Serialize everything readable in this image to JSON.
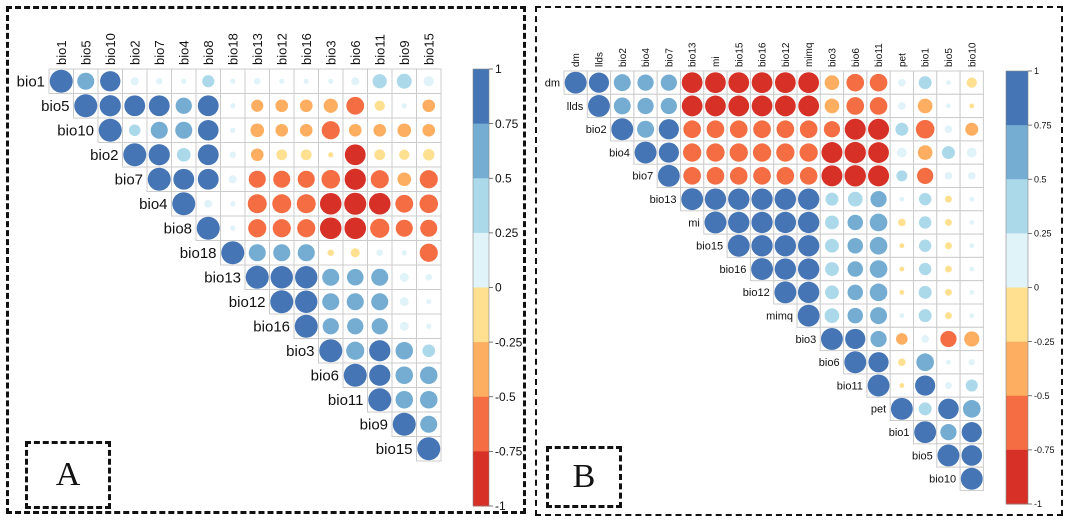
{
  "chart_data": [
    {
      "type": "heatmap",
      "panel_label": "A",
      "variables": [
        "bio1",
        "bio5",
        "bio10",
        "bio2",
        "bio7",
        "bio4",
        "bio8",
        "bio18",
        "bio13",
        "bio12",
        "bio16",
        "bio3",
        "bio6",
        "bio11",
        "bio9",
        "bio15"
      ],
      "matrix_shape": "upper-triangle",
      "glyph": "circle",
      "legend": {
        "ticks": [
          "1",
          "0.75",
          "0.5",
          "0.25",
          "0",
          "-0.25",
          "-0.5",
          "-0.75",
          "-1"
        ],
        "range": [
          -1,
          1
        ],
        "placement": "right"
      },
      "values": [
        [
          1,
          0.55,
          0.78,
          0.12,
          0.08,
          0.05,
          0.28,
          0.05,
          0.08,
          0.05,
          0.05,
          0.05,
          0.12,
          0.38,
          0.42,
          0.2
        ],
        [
          null,
          1,
          0.85,
          0.82,
          0.82,
          0.5,
          0.82,
          0.05,
          -0.28,
          -0.3,
          -0.3,
          -0.38,
          -0.6,
          -0.2,
          0.05,
          -0.3
        ],
        [
          null,
          null,
          1,
          0.25,
          0.55,
          0.55,
          0.8,
          0.05,
          -0.35,
          -0.3,
          -0.3,
          -0.62,
          -0.3,
          -0.3,
          -0.35,
          -0.3
        ],
        [
          null,
          null,
          null,
          1,
          0.85,
          0.35,
          0.82,
          0.08,
          -0.3,
          -0.22,
          -0.22,
          -0.05,
          -0.82,
          -0.22,
          -0.2,
          -0.25
        ],
        [
          null,
          null,
          null,
          null,
          1,
          0.82,
          0.82,
          0.12,
          -0.55,
          -0.55,
          -0.55,
          -0.65,
          -0.85,
          -0.62,
          -0.35,
          -0.62
        ],
        [
          null,
          null,
          null,
          null,
          null,
          1,
          0.12,
          0.05,
          -0.68,
          -0.68,
          -0.68,
          -0.88,
          -0.92,
          -0.88,
          -0.6,
          -0.65
        ],
        [
          null,
          null,
          null,
          null,
          null,
          null,
          1,
          0.05,
          -0.62,
          -0.62,
          -0.62,
          -0.88,
          -0.88,
          -0.7,
          -0.55,
          -0.55
        ],
        [
          null,
          null,
          null,
          null,
          null,
          null,
          null,
          1,
          0.55,
          0.55,
          0.55,
          -0.08,
          -0.15,
          0.08,
          0.05,
          -0.62
        ],
        [
          null,
          null,
          null,
          null,
          null,
          null,
          null,
          null,
          1,
          0.95,
          0.95,
          0.55,
          0.52,
          0.55,
          0.15,
          0.08
        ],
        [
          null,
          null,
          null,
          null,
          null,
          null,
          null,
          null,
          null,
          1,
          0.95,
          0.55,
          0.55,
          0.55,
          0.15,
          0.05
        ],
        [
          null,
          null,
          null,
          null,
          null,
          null,
          null,
          null,
          null,
          null,
          1,
          0.5,
          0.5,
          0.5,
          0.15,
          0.05
        ],
        [
          null,
          null,
          null,
          null,
          null,
          null,
          null,
          null,
          null,
          null,
          null,
          1,
          0.62,
          0.85,
          0.58,
          0.3
        ],
        [
          null,
          null,
          null,
          null,
          null,
          null,
          null,
          null,
          null,
          null,
          null,
          null,
          1,
          0.85,
          0.58,
          0.58
        ],
        [
          null,
          null,
          null,
          null,
          null,
          null,
          null,
          null,
          null,
          null,
          null,
          null,
          null,
          1,
          0.58,
          0.58
        ],
        [
          null,
          null,
          null,
          null,
          null,
          null,
          null,
          null,
          null,
          null,
          null,
          null,
          null,
          null,
          1,
          0.55
        ],
        [
          null,
          null,
          null,
          null,
          null,
          null,
          null,
          null,
          null,
          null,
          null,
          null,
          null,
          null,
          null,
          1
        ]
      ]
    },
    {
      "type": "heatmap",
      "panel_label": "B",
      "variables": [
        "dm",
        "llds",
        "bio2",
        "bio4",
        "bio7",
        "bio13",
        "mi",
        "bio15",
        "bio16",
        "bio12",
        "mimq",
        "bio3",
        "bio6",
        "bio11",
        "pet",
        "bio1",
        "bio5",
        "bio10"
      ],
      "matrix_shape": "upper-triangle",
      "glyph": "circle",
      "legend": {
        "ticks": [
          "1",
          "0.75",
          "0.5",
          "0.25",
          "0",
          "-0.25",
          "-0.5",
          "-0.75",
          "-1"
        ],
        "range": [
          -1,
          1
        ],
        "placement": "right"
      },
      "values": [
        [
          1,
          0.85,
          0.6,
          0.55,
          0.55,
          -0.9,
          -0.9,
          -0.9,
          -0.9,
          -0.9,
          -0.9,
          -0.45,
          -0.65,
          -0.65,
          0.12,
          0.35,
          0.05,
          -0.22
        ],
        [
          null,
          1,
          0.6,
          0.55,
          0.55,
          -0.9,
          -0.9,
          -0.9,
          -0.9,
          -0.9,
          -0.9,
          -0.45,
          -0.65,
          -0.65,
          0.12,
          -0.45,
          0.05,
          -0.05
        ],
        [
          null,
          null,
          1,
          0.6,
          0.85,
          -0.65,
          -0.65,
          -0.65,
          -0.65,
          -0.65,
          -0.65,
          -0.55,
          -0.92,
          -0.92,
          0.35,
          -0.72,
          0.12,
          -0.35
        ],
        [
          null,
          null,
          null,
          1,
          0.85,
          -0.7,
          -0.7,
          -0.7,
          -0.7,
          -0.7,
          -0.7,
          -0.92,
          -0.95,
          -0.9,
          0.2,
          -0.45,
          0.35,
          0.2
        ],
        [
          null,
          null,
          null,
          null,
          1,
          -0.65,
          -0.65,
          -0.65,
          -0.65,
          -0.65,
          -0.65,
          -0.92,
          -0.95,
          -0.92,
          0.25,
          -0.55,
          0.12,
          0.12
        ],
        [
          null,
          null,
          null,
          null,
          null,
          1,
          0.95,
          0.95,
          0.95,
          0.95,
          0.95,
          0.35,
          0.45,
          0.55,
          0.05,
          0.32,
          -0.1,
          0.05
        ],
        [
          null,
          null,
          null,
          null,
          null,
          null,
          1,
          0.95,
          0.95,
          0.95,
          0.95,
          0.4,
          0.5,
          0.65,
          -0.12,
          0.32,
          -0.1,
          0.05
        ],
        [
          null,
          null,
          null,
          null,
          null,
          null,
          null,
          1,
          0.95,
          0.95,
          0.95,
          0.4,
          0.5,
          0.65,
          -0.05,
          0.32,
          -0.1,
          0.05
        ],
        [
          null,
          null,
          null,
          null,
          null,
          null,
          null,
          null,
          1,
          0.95,
          0.95,
          0.4,
          0.5,
          0.65,
          -0.05,
          0.32,
          -0.1,
          0.05
        ],
        [
          null,
          null,
          null,
          null,
          null,
          null,
          null,
          null,
          null,
          1,
          0.95,
          0.4,
          0.5,
          0.65,
          -0.05,
          0.35,
          -0.1,
          0.05
        ],
        [
          null,
          null,
          null,
          null,
          null,
          null,
          null,
          null,
          null,
          null,
          1,
          0.45,
          0.5,
          0.6,
          0.05,
          0.35,
          -0.1,
          0.05
        ],
        [
          null,
          null,
          null,
          null,
          null,
          null,
          null,
          null,
          null,
          null,
          null,
          1,
          0.85,
          0.55,
          -0.28,
          0.12,
          -0.55,
          -0.48
        ],
        [
          null,
          null,
          null,
          null,
          null,
          null,
          null,
          null,
          null,
          null,
          null,
          null,
          1,
          0.85,
          -0.12,
          0.65,
          0.05,
          0.08
        ],
        [
          null,
          null,
          null,
          null,
          null,
          null,
          null,
          null,
          null,
          null,
          null,
          null,
          null,
          1,
          -0.05,
          0.85,
          0.1,
          0.3
        ],
        [
          null,
          null,
          null,
          null,
          null,
          null,
          null,
          null,
          null,
          null,
          null,
          null,
          null,
          null,
          1,
          0.35,
          0.88,
          0.65
        ],
        [
          null,
          null,
          null,
          null,
          null,
          null,
          null,
          null,
          null,
          null,
          null,
          null,
          null,
          null,
          null,
          1,
          0.55,
          0.85
        ],
        [
          null,
          null,
          null,
          null,
          null,
          null,
          null,
          null,
          null,
          null,
          null,
          null,
          null,
          null,
          null,
          null,
          1,
          0.88
        ],
        [
          null,
          null,
          null,
          null,
          null,
          null,
          null,
          null,
          null,
          null,
          null,
          null,
          null,
          null,
          null,
          null,
          null,
          1
        ]
      ]
    }
  ],
  "colors": {
    "scale": [
      "#D73027",
      "#F46D43",
      "#FDAE61",
      "#FEE090",
      "#E0F3F8",
      "#ABD9E9",
      "#74ADD1",
      "#4575B4"
    ],
    "grid": "#CCCCCC",
    "frame": "#111111"
  }
}
